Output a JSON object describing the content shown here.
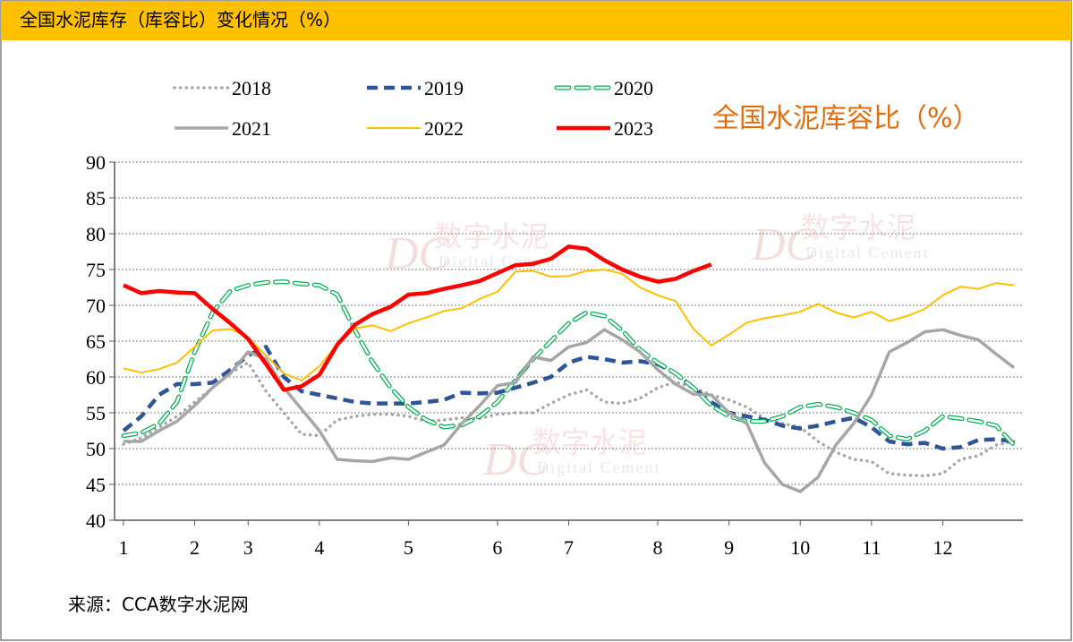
{
  "chart_data": {
    "type": "line",
    "title": "全国水泥库存（库容比）变化情况（%）",
    "annotation": "全国水泥库容比（%）",
    "source": "来源：CCA数字水泥网",
    "watermark": [
      "DC",
      "数字水泥",
      "Digital Cement"
    ],
    "categories": [
      "1",
      null,
      null,
      null,
      "2",
      null,
      null,
      "3",
      null,
      null,
      null,
      "4",
      null,
      null,
      null,
      null,
      "5",
      null,
      null,
      null,
      null,
      "6",
      null,
      null,
      null,
      "7",
      null,
      null,
      null,
      null,
      "8",
      null,
      null,
      null,
      "9",
      null,
      null,
      null,
      "10",
      null,
      null,
      null,
      "11",
      null,
      null,
      null,
      "12",
      null,
      null,
      null,
      null
    ],
    "ylim": [
      40,
      90
    ],
    "yticks": [
      40,
      45,
      50,
      55,
      60,
      65,
      70,
      75,
      80,
      85,
      90
    ],
    "grid": true,
    "series": [
      {
        "name": "2018",
        "color": "#a6a6a6",
        "line_style": "dotted",
        "values": [
          50.6,
          51.5,
          53.0,
          54.5,
          56.5,
          58.5,
          60.5,
          62.0,
          58.0,
          55.0,
          52.0,
          51.8,
          54.0,
          54.5,
          54.8,
          54.8,
          54.5,
          53.8,
          54.0,
          54.3,
          54.2,
          54.8,
          55.0,
          55.0,
          56.3,
          57.5,
          58.2,
          56.5,
          56.3,
          57.0,
          58.5,
          59.3,
          58.5,
          57.5,
          56.8,
          55.8,
          54.2,
          53.5,
          53.0,
          51.0,
          49.5,
          48.5,
          48.2,
          46.5,
          46.3,
          46.2,
          46.5,
          48.5,
          49.0,
          50.5,
          51.0
        ]
      },
      {
        "name": "2019",
        "color": "#2f5597",
        "line_style": "dashed",
        "values": [
          52.5,
          54.5,
          57.5,
          59.0,
          59.0,
          59.2,
          61.0,
          63.0,
          64.2,
          60.0,
          58.0,
          57.5,
          57.0,
          56.5,
          56.3,
          56.3,
          56.3,
          56.5,
          56.8,
          57.8,
          57.7,
          57.8,
          58.5,
          59.2,
          60.0,
          62.0,
          62.8,
          62.5,
          62.0,
          62.2,
          61.8,
          60.5,
          58.5,
          56.5,
          55.0,
          54.5,
          54.0,
          53.2,
          52.8,
          53.2,
          53.8,
          54.3,
          53.0,
          51.0,
          50.6,
          50.8,
          50.0,
          50.2,
          51.2,
          51.3,
          51.0
        ]
      },
      {
        "name": "2020",
        "color": "#00b050",
        "line_style": "outlined-dashed",
        "values": [
          51.8,
          52.2,
          53.5,
          56.5,
          63.5,
          69.0,
          72.0,
          72.8,
          73.2,
          73.3,
          73.0,
          72.8,
          71.5,
          66.5,
          62.0,
          58.5,
          55.8,
          54.0,
          53.0,
          53.3,
          54.5,
          56.5,
          59.5,
          62.5,
          65.0,
          67.5,
          69.0,
          68.5,
          66.5,
          63.8,
          62.0,
          60.5,
          58.5,
          56.0,
          54.5,
          53.8,
          53.8,
          54.5,
          55.8,
          56.2,
          55.8,
          55.0,
          54.0,
          51.8,
          51.3,
          52.5,
          54.5,
          54.2,
          53.8,
          53.2,
          50.5
        ]
      },
      {
        "name": "2021",
        "color": "#a6a6a6",
        "line_style": "solid",
        "values": [
          51.0,
          51.0,
          52.5,
          53.8,
          56.0,
          58.5,
          60.5,
          63.5,
          62.5,
          58.5,
          55.5,
          52.5,
          48.5,
          48.3,
          48.2,
          48.7,
          48.5,
          49.5,
          50.5,
          53.5,
          56.0,
          58.8,
          59.2,
          62.8,
          62.3,
          64.2,
          64.8,
          66.6,
          65.2,
          63.5,
          61.0,
          59.0,
          57.6,
          57.5,
          55.0,
          53.5,
          48.0,
          45.0,
          44.0,
          46.0,
          50.5,
          53.5,
          57.5,
          63.5,
          64.8,
          66.3,
          66.6,
          65.8,
          65.2,
          63.2,
          61.3
        ]
      },
      {
        "name": "2022",
        "color": "#ffc000",
        "line_style": "solid-thin",
        "values": [
          61.2,
          60.6,
          61.1,
          62.0,
          64.2,
          66.5,
          66.7,
          65.5,
          63.0,
          60.5,
          59.5,
          61.5,
          64.5,
          66.8,
          67.2,
          66.4,
          67.5,
          68.3,
          69.2,
          69.6,
          70.9,
          71.9,
          74.7,
          74.8,
          74.0,
          74.1,
          74.8,
          75.0,
          74.4,
          72.5,
          71.4,
          70.6,
          66.7,
          64.4,
          65.9,
          67.6,
          68.2,
          68.6,
          69.1,
          70.2,
          69.0,
          68.3,
          69.1,
          67.8,
          68.5,
          69.5,
          71.4,
          72.6,
          72.3,
          73.1,
          72.8
        ]
      },
      {
        "name": "2023",
        "color": "#ff0000",
        "line_style": "solid-bold",
        "values": [
          72.8,
          71.7,
          72.0,
          71.8,
          71.7,
          69.5,
          67.5,
          65.3,
          61.8,
          58.2,
          58.7,
          60.3,
          64.5,
          67.3,
          68.8,
          69.8,
          71.5,
          71.7,
          72.3,
          72.8,
          73.4,
          74.5,
          75.6,
          75.8,
          76.5,
          78.2,
          77.9,
          76.3,
          75.0,
          74.0,
          73.3,
          73.7,
          74.8,
          75.7,
          null,
          null,
          null,
          null,
          null,
          null,
          null,
          null,
          null,
          null,
          null,
          null,
          null,
          null,
          null,
          null,
          null
        ]
      }
    ]
  }
}
